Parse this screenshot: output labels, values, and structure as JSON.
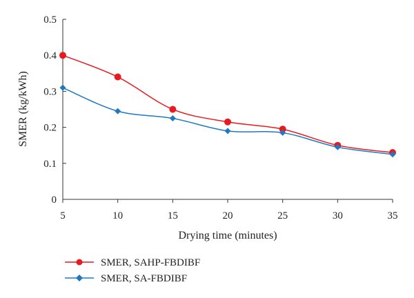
{
  "chart_data": {
    "type": "line",
    "title": "",
    "xlabel": "Drying time (minutes)",
    "ylabel": "SMER (kg/kWh)",
    "x": [
      5,
      10,
      15,
      20,
      25,
      30,
      35
    ],
    "xlim": [
      5,
      35
    ],
    "ylim": [
      0,
      0.5
    ],
    "xticks": [
      "5",
      "10",
      "15",
      "20",
      "25",
      "30",
      "35"
    ],
    "yticks": [
      "0",
      "0.1",
      "0.2",
      "0.3",
      "0.4",
      "0.5"
    ],
    "grid": false,
    "legend_position": "bottom-left",
    "series": [
      {
        "name": "SMER, SAHP-FBDIBF",
        "values": [
          0.4,
          0.34,
          0.25,
          0.215,
          0.195,
          0.15,
          0.13
        ],
        "color": "#e8191f",
        "marker": "circle"
      },
      {
        "name": "SMER, SA-FBDIBF",
        "values": [
          0.31,
          0.245,
          0.225,
          0.19,
          0.185,
          0.145,
          0.125
        ],
        "color": "#1f78c1",
        "marker": "diamond"
      }
    ]
  }
}
